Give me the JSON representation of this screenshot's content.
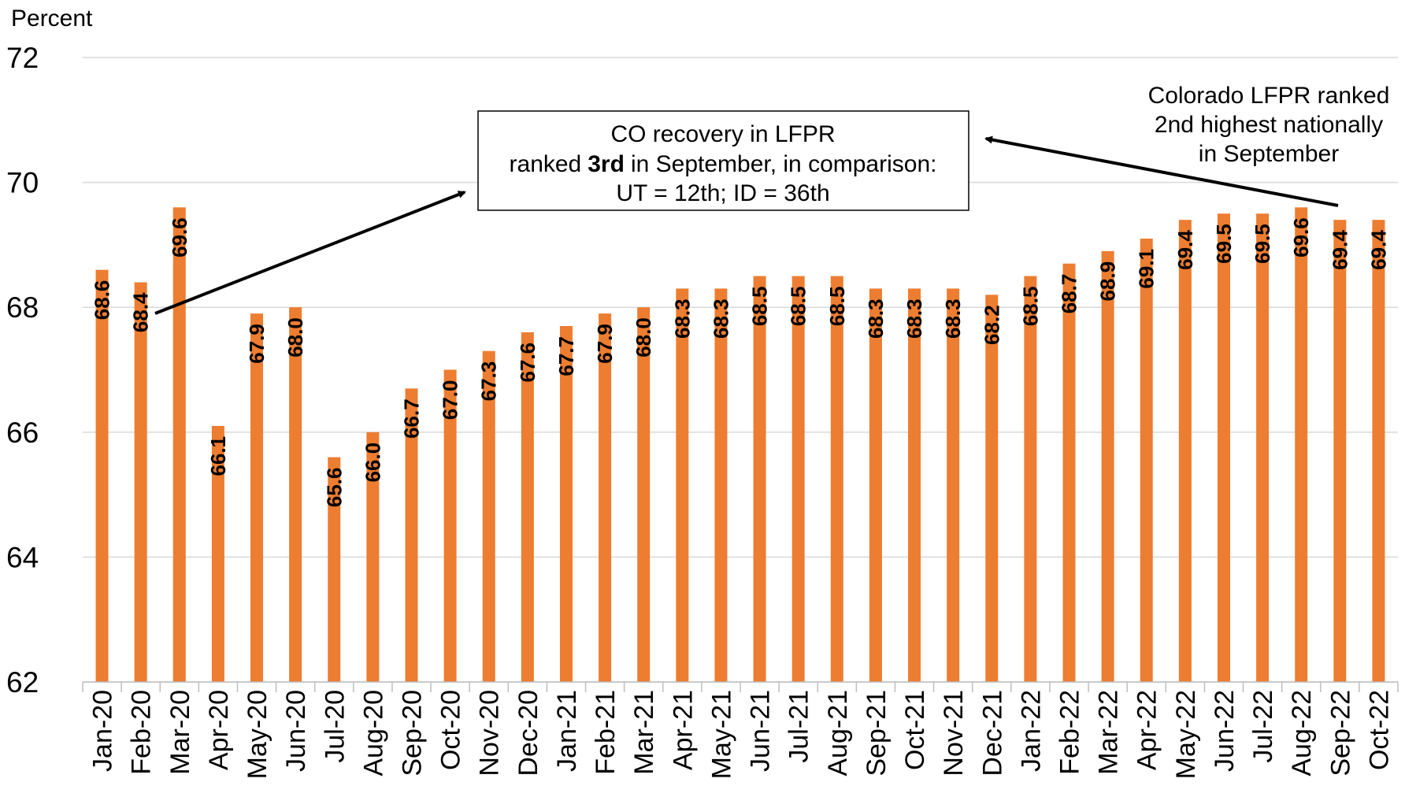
{
  "chart_data": {
    "type": "bar",
    "y_axis_label": "Percent",
    "categories": [
      "Jan-20",
      "Feb-20",
      "Mar-20",
      "Apr-20",
      "May-20",
      "Jun-20",
      "Jul-20",
      "Aug-20",
      "Sep-20",
      "Oct-20",
      "Nov-20",
      "Dec-20",
      "Jan-21",
      "Feb-21",
      "Mar-21",
      "Apr-21",
      "May-21",
      "Jun-21",
      "Jul-21",
      "Aug-21",
      "Sep-21",
      "Oct-21",
      "Nov-21",
      "Dec-21",
      "Jan-22",
      "Feb-22",
      "Mar-22",
      "Apr-22",
      "May-22",
      "Jun-22",
      "Jul-22",
      "Aug-22",
      "Sep-22",
      "Oct-22"
    ],
    "values": [
      68.6,
      68.4,
      69.6,
      66.1,
      67.9,
      68.0,
      65.6,
      66.0,
      66.7,
      67.0,
      67.3,
      67.6,
      67.7,
      67.9,
      68.0,
      68.3,
      68.3,
      68.5,
      68.5,
      68.5,
      68.3,
      68.3,
      68.3,
      68.2,
      68.5,
      68.7,
      68.9,
      69.1,
      69.4,
      69.5,
      69.5,
      69.6,
      69.4,
      69.4
    ],
    "value_labels": [
      "68.6",
      "68.4",
      "69.6",
      "66.1",
      "67.9",
      "68.0",
      "65.6",
      "66.0",
      "66.7",
      "67.0",
      "67.3",
      "67.6",
      "67.7",
      "67.9",
      "68.0",
      "68.3",
      "68.3",
      "68.5",
      "68.5",
      "68.5",
      "68.3",
      "68.3",
      "68.3",
      "68.2",
      "68.5",
      "68.7",
      "68.9",
      "69.1",
      "69.4",
      "69.5",
      "69.5",
      "69.6",
      "69.4",
      "69.4"
    ],
    "color": "#ed7d31",
    "ylim": [
      62,
      72
    ],
    "yticks": [
      62,
      64,
      66,
      68,
      70,
      72
    ],
    "grid": true,
    "annotations": [
      {
        "lines": [
          "CO recovery in LFPR",
          [
            "ranked",
            "3rd",
            "in September, in comparison:"
          ],
          "UT = 12th; ID = 36th"
        ]
      },
      {
        "lines": [
          "Colorado LFPR ranked",
          "2nd highest nationally",
          "in September"
        ]
      }
    ]
  }
}
